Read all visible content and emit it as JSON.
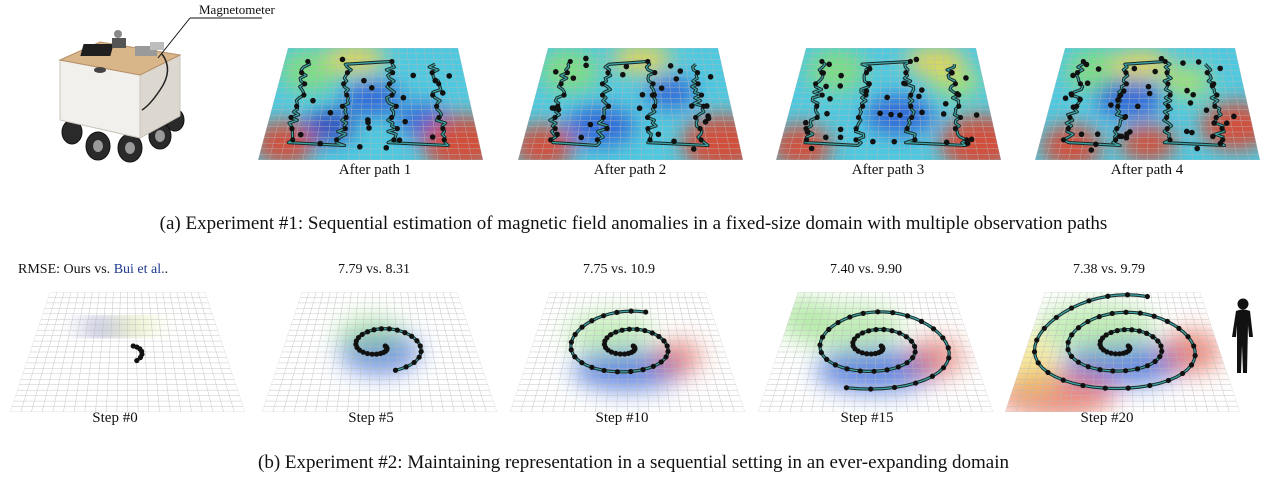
{
  "robot": {
    "magnetometer_label": "Magnetometer"
  },
  "experiment1": {
    "panels": [
      {
        "label": "After path 1"
      },
      {
        "label": "After path 2"
      },
      {
        "label": "After path 3"
      },
      {
        "label": "After path 4"
      }
    ],
    "caption": "(a) Experiment #1: Sequential estimation of magnetic field anomalies in a fixed-size domain with multiple observation paths"
  },
  "experiment2": {
    "rmse_prefix": "RMSE: Ours vs. ",
    "rmse_ref": "Bui et al.",
    "rmse_suffix": ".",
    "panels": [
      {
        "label": "Step #0",
        "rmse": ""
      },
      {
        "label": "Step #5",
        "rmse": "7.79 vs. 8.31"
      },
      {
        "label": "Step #10",
        "rmse": "7.75 vs. 10.9"
      },
      {
        "label": "Step #15",
        "rmse": "7.40 vs. 9.90"
      },
      {
        "label": "Step #20",
        "rmse": "7.38 vs. 9.79"
      }
    ],
    "caption": "(b) Experiment #2: Maintaining representation in a sequential setting in an ever-expanding domain"
  },
  "colors": {
    "accent_link": "#1f3a8f",
    "high": "#e0402a",
    "mid": "#6ad06a",
    "low": "#2f5fd8",
    "base": "#4fc9e0"
  }
}
